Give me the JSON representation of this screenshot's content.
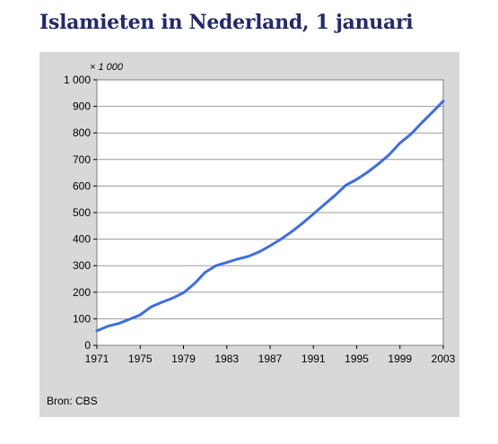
{
  "title": "Islamieten in Nederland, 1 januari",
  "source": "Bron: CBS",
  "colors": {
    "title": "#24296b",
    "panel": "#d8d8d8",
    "plot": "#ffffff",
    "line": "#3d6ce6"
  },
  "chart_data": {
    "type": "line",
    "title": "Islamieten in Nederland, 1 januari",
    "unit_label": "× 1 000",
    "xlabel": "",
    "ylabel": "",
    "xlim": [
      1971,
      2003
    ],
    "ylim": [
      0,
      1000
    ],
    "grid": true,
    "legend": "none",
    "x_ticks": [
      "1971",
      "1975",
      "1979",
      "1983",
      "1987",
      "1991",
      "1995",
      "1999",
      "2003"
    ],
    "x_tick_values": [
      1971,
      1975,
      1979,
      1983,
      1987,
      1991,
      1995,
      1999,
      2003
    ],
    "y_ticks": [
      "0",
      "100",
      "200",
      "300",
      "400",
      "500",
      "600",
      "700",
      "800",
      "900",
      "1 000"
    ],
    "y_tick_values": [
      0,
      100,
      200,
      300,
      400,
      500,
      600,
      700,
      800,
      900,
      1000
    ],
    "series": [
      {
        "x": [
          1971,
          1972,
          1973,
          1974,
          1975,
          1976,
          1977,
          1978,
          1979,
          1980,
          1981,
          1982,
          1983,
          1984,
          1985,
          1986,
          1987,
          1988,
          1989,
          1990,
          1991,
          1992,
          1993,
          1994,
          1995,
          1996,
          1997,
          1998,
          1999,
          2000,
          2001,
          2002,
          2003
        ],
        "y": [
          55,
          72,
          82,
          98,
          115,
          145,
          162,
          178,
          198,
          232,
          275,
          300,
          312,
          325,
          335,
          352,
          375,
          400,
          428,
          460,
          495,
          530,
          565,
          603,
          625,
          652,
          683,
          718,
          762,
          795,
          838,
          878,
          920
        ]
      }
    ]
  }
}
